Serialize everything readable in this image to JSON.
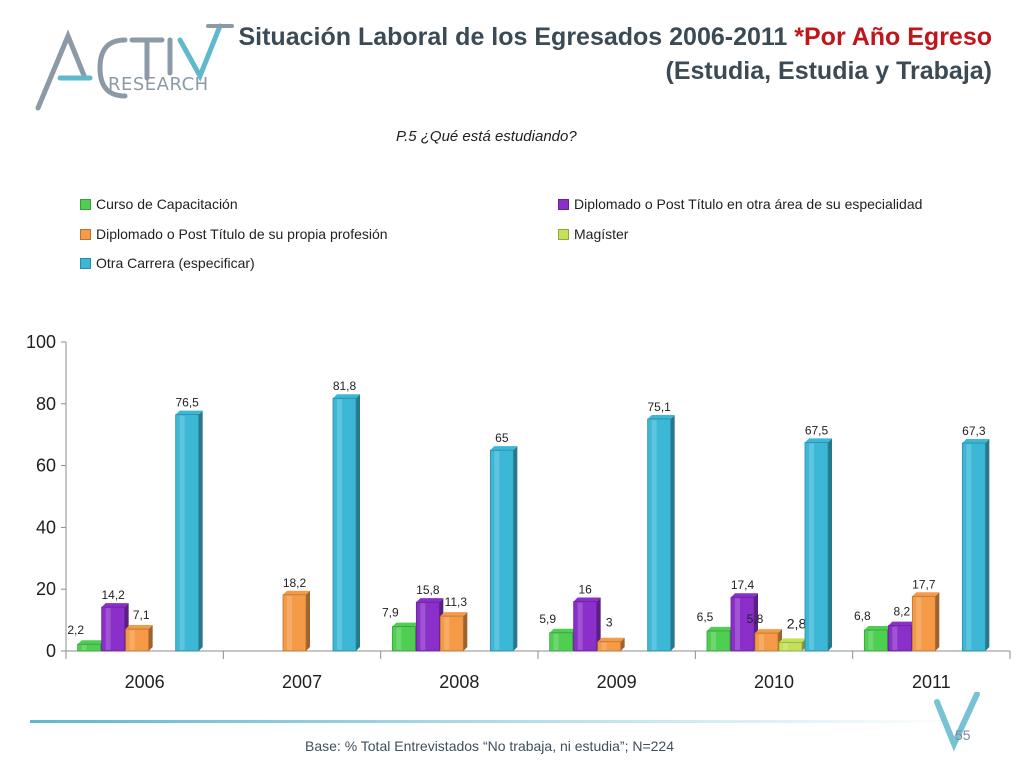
{
  "header": {
    "logo_text": "RESEARCH",
    "title_main": "Situación Laboral de los Egresados 2006-2011",
    "title_accent": "*Por Año Egreso",
    "title_sub": "(Estudia, Estudia y Trabaja)",
    "question": "P.5 ¿Qué está estudiando?"
  },
  "footer": {
    "base_text": "Base: % Total Entrevistados “No trabaja, ni estudia”; N=224",
    "page_number": "55"
  },
  "colors": {
    "title": "#3b4a54",
    "accent": "#c0161b",
    "brand": "#5fb8cc"
  },
  "chart_data": {
    "type": "bar",
    "title": "",
    "xlabel": "",
    "ylabel": "",
    "ylim": [
      0,
      100
    ],
    "yticks": [
      0,
      20,
      40,
      60,
      80,
      100
    ],
    "grid": false,
    "legend_position": "top",
    "categories": [
      "2006",
      "2007",
      "2008",
      "2009",
      "2010",
      "2011"
    ],
    "series": [
      {
        "name": "Curso de Capacitación",
        "color": "#4fcf52",
        "values": [
          2.2,
          null,
          7.9,
          5.9,
          6.5,
          6.8
        ],
        "labels": [
          "2,2",
          "",
          "7,9",
          "5,9",
          "6,5",
          "6,8"
        ]
      },
      {
        "name": "Diplomado o Post Título en otra área de su especialidad",
        "color": "#8a2fc9",
        "values": [
          14.2,
          null,
          15.8,
          16,
          17.4,
          8.2
        ],
        "labels": [
          "14,2",
          "",
          "15,8",
          "16",
          "17,4",
          "8,2"
        ]
      },
      {
        "name": "Diplomado o Post Título de su propia profesión",
        "color": "#f59a46",
        "values": [
          7.1,
          18.2,
          11.3,
          3,
          5.8,
          17.7
        ],
        "labels": [
          "7,1",
          "18,2",
          "11,3",
          "3",
          "5,8",
          "17,7"
        ]
      },
      {
        "name": "Magíster",
        "color": "#c4e05a",
        "values": [
          null,
          null,
          null,
          null,
          2.8,
          null
        ],
        "labels": [
          "",
          "",
          "",
          "",
          "2,8",
          ""
        ]
      },
      {
        "name": "Otra Carrera (especificar)",
        "color": "#3cb8d6",
        "values": [
          76.5,
          81.8,
          65,
          75.1,
          67.5,
          67.3
        ],
        "labels": [
          "76,5",
          "81,8",
          "65",
          "75,1",
          "67,5",
          "67,3"
        ]
      }
    ]
  }
}
